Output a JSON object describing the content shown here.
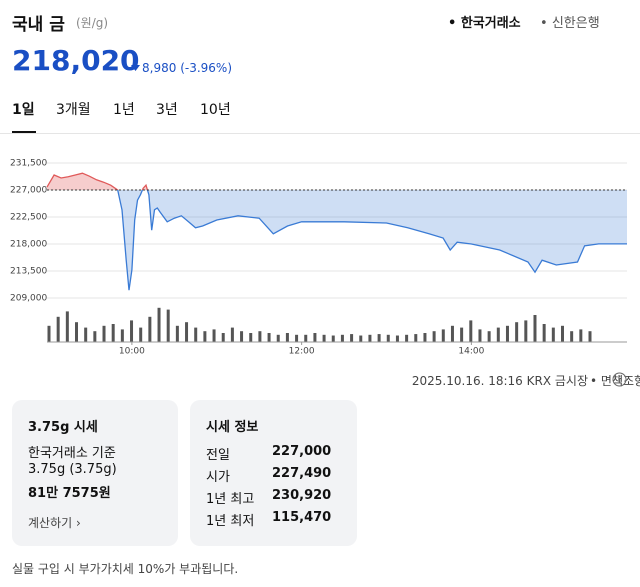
{
  "header": {
    "title": "국내 금",
    "unit": "(원/g)",
    "sources": [
      "한국거래소",
      "신한은행"
    ]
  },
  "price": {
    "value": "218,020",
    "change": "8,980",
    "change_pct": "(-3.96%)"
  },
  "tabs": [
    "1일",
    "3개월",
    "1년",
    "3년",
    "10년"
  ],
  "chart_data": {
    "type": "line",
    "x": [
      "09:00",
      "09:05",
      "09:10",
      "09:15",
      "09:20",
      "09:25",
      "09:30",
      "09:35",
      "09:40",
      "09:45",
      "09:50",
      "09:53",
      "09:56",
      "09:58",
      "10:00",
      "10:02",
      "10:04",
      "10:06",
      "10:08",
      "10:10",
      "10:12",
      "10:14",
      "10:16",
      "10:18",
      "10:20",
      "10:25",
      "10:30",
      "10:35",
      "10:40",
      "10:45",
      "10:50",
      "11:00",
      "11:15",
      "11:30",
      "11:40",
      "11:50",
      "12:00",
      "12:30",
      "13:00",
      "13:15",
      "13:30",
      "13:40",
      "13:45",
      "13:50",
      "14:00",
      "14:20",
      "14:40",
      "14:45",
      "14:50",
      "15:00",
      "15:15",
      "15:20",
      "15:30",
      "15:50"
    ],
    "values": [
      227490,
      229500,
      229000,
      229200,
      229500,
      229800,
      229300,
      228700,
      228300,
      227800,
      227000,
      223700,
      215300,
      210300,
      213700,
      222000,
      225300,
      226200,
      227300,
      227800,
      226200,
      220300,
      223700,
      224000,
      223300,
      221700,
      222300,
      222700,
      221700,
      220700,
      221000,
      222000,
      222700,
      222300,
      219700,
      221000,
      221700,
      221700,
      221500,
      220700,
      219700,
      219000,
      217000,
      218300,
      218000,
      217000,
      215000,
      213300,
      215300,
      214500,
      215000,
      217700,
      218020,
      218020
    ],
    "baseline": 227000,
    "up_color": "#e05a5a",
    "down_color": "#3a7bd5",
    "xlim": [
      "09:00",
      "15:50"
    ],
    "xticks": [
      "10:00",
      "12:00",
      "14:00"
    ],
    "ylim": [
      209000,
      231500
    ],
    "yticks": [
      {
        "value": 209000,
        "label": "209,000"
      },
      {
        "value": 213500,
        "label": "213,500"
      },
      {
        "value": 218000,
        "label": "218,000"
      },
      {
        "value": 222500,
        "label": "222,500"
      },
      {
        "value": 227000,
        "label": "227,000"
      },
      {
        "value": 231500,
        "label": "231,500"
      }
    ],
    "grid": true,
    "volume": {
      "color": "#555555",
      "ylim": [
        0,
        100
      ],
      "values": [
        45,
        70,
        85,
        55,
        40,
        30,
        45,
        50,
        35,
        60,
        40,
        70,
        95,
        90,
        45,
        55,
        40,
        30,
        35,
        25,
        40,
        30,
        25,
        30,
        25,
        20,
        25,
        20,
        20,
        25,
        20,
        18,
        20,
        22,
        18,
        20,
        22,
        20,
        18,
        20,
        22,
        25,
        30,
        35,
        45,
        40,
        60,
        35,
        30,
        40,
        45,
        55,
        60,
        75,
        50,
        40,
        45,
        30,
        35,
        30
      ]
    }
  },
  "timestamp": "2025.10.16. 18:16 KRX 금시장",
  "disclaimer": "면책조항",
  "card1": {
    "title": "3.75g 시세",
    "lines": [
      "한국거래소 기준",
      "3.75g (3.75g)"
    ],
    "value": "81만 7575원",
    "link": "계산하기"
  },
  "card2": {
    "title": "시세 정보",
    "rows": [
      [
        "전일",
        "227,000"
      ],
      [
        "시가",
        "227,490"
      ],
      [
        "1년 최고",
        "230,920"
      ],
      [
        "1년 최저",
        "115,470"
      ]
    ]
  },
  "footnote": "실물 구입 시 부가가치세 10%가 부과됩니다."
}
